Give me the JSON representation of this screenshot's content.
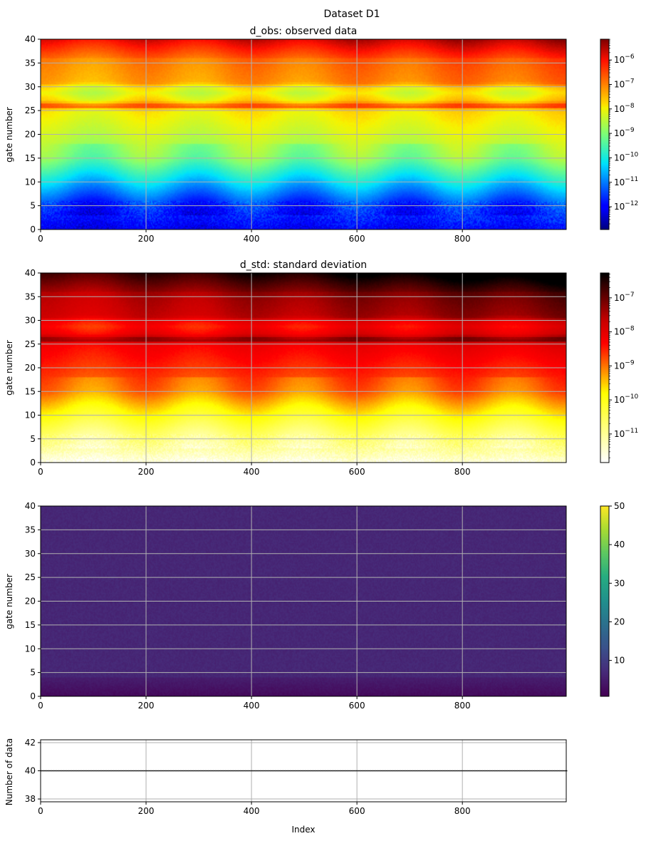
{
  "figure": {
    "title": "Dataset D1"
  },
  "chart_data": [
    {
      "type": "heatmap",
      "title": "d_obs: observed data",
      "xlabel": "",
      "ylabel": "gate number",
      "xlim": [
        0,
        1000
      ],
      "ylim": [
        0,
        40
      ],
      "xticks": [
        "0",
        "200",
        "400",
        "600",
        "800"
      ],
      "yticks": [
        "0",
        "5",
        "10",
        "15",
        "20",
        "25",
        "30",
        "35",
        "40"
      ],
      "grid": true,
      "colormap": "jet",
      "color_scale": "log",
      "clim": [
        1.2e-13,
        7e-06
      ],
      "colorbar_ticks": [
        "10^-12",
        "10^-11",
        "10^-10",
        "10^-9",
        "10^-8",
        "10^-7",
        "10^-6"
      ],
      "colorbar_tick_values": [
        -12,
        -11,
        -10,
        -9,
        -8,
        -7,
        -6
      ]
    },
    {
      "type": "heatmap",
      "title": "d_std: standard deviation",
      "xlabel": "",
      "ylabel": "gate number",
      "xlim": [
        0,
        1000
      ],
      "ylim": [
        0,
        40
      ],
      "xticks": [
        "0",
        "200",
        "400",
        "600",
        "800"
      ],
      "yticks": [
        "0",
        "5",
        "10",
        "15",
        "20",
        "25",
        "30",
        "35",
        "40"
      ],
      "grid": true,
      "colormap": "hot_r",
      "color_scale": "log",
      "clim": [
        1.5e-12,
        5.5e-07
      ],
      "colorbar_ticks": [
        "10^-11",
        "10^-10",
        "10^-9",
        "10^-8",
        "10^-7"
      ],
      "colorbar_tick_values": [
        -11,
        -10,
        -9,
        -8,
        -7
      ]
    },
    {
      "type": "heatmap",
      "title": "",
      "xlabel": "",
      "ylabel": "gate number",
      "xlim": [
        0,
        1000
      ],
      "ylim": [
        0,
        40
      ],
      "xticks": [
        "0",
        "200",
        "400",
        "600",
        "800"
      ],
      "yticks": [
        "0",
        "5",
        "10",
        "15",
        "20",
        "25",
        "30",
        "35",
        "40"
      ],
      "grid": true,
      "colormap": "viridis",
      "color_scale": "linear",
      "clim": [
        0.7,
        50
      ],
      "colorbar_ticks": [
        "10",
        "20",
        "30",
        "40",
        "50"
      ],
      "colorbar_tick_values": [
        10,
        20,
        30,
        40,
        50
      ]
    },
    {
      "type": "line",
      "title": "",
      "xlabel": "Index",
      "ylabel": "Number of data",
      "xlim": [
        0,
        1000
      ],
      "ylim": [
        37.8,
        42.2
      ],
      "xticks": [
        "0",
        "200",
        "400",
        "600",
        "800"
      ],
      "yticks": [
        "38",
        "40",
        "42"
      ],
      "grid": true,
      "series": [
        {
          "x_range": [
            0,
            999
          ],
          "constant_value": 40,
          "color": "#000000"
        }
      ]
    }
  ]
}
